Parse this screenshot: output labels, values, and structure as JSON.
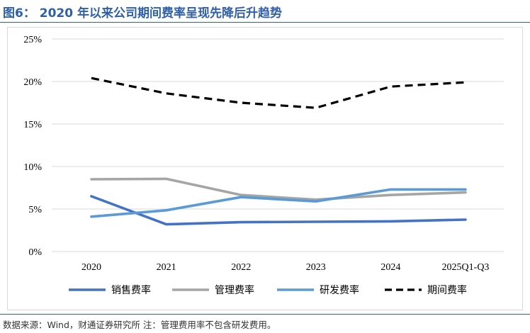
{
  "figure": {
    "title": "图6： 2020 年以来公司期间费率呈现先降后升趋势",
    "source": "数据来源：Wind，财通证券研究所 注：管理费用率不包含研发费用。"
  },
  "colors": {
    "title": "#2e5fa8",
    "grid": "#d9d9d9",
    "axis_text": "#000000"
  },
  "chart_data": {
    "type": "line",
    "x": [
      "2020",
      "2021",
      "2022",
      "2023",
      "2024",
      "2025Q1-Q3"
    ],
    "ylim": [
      0,
      25
    ],
    "y_ticks": [
      0,
      5,
      10,
      15,
      20,
      25
    ],
    "y_tick_labels": [
      "0%",
      "5%",
      "10%",
      "15%",
      "20%",
      "25%"
    ],
    "grid": true,
    "legend": "bottom",
    "series": [
      {
        "name": "销售费率",
        "color": "#4472c4",
        "dashed": false,
        "values": [
          6.5,
          3.2,
          3.45,
          3.5,
          3.55,
          3.75
        ]
      },
      {
        "name": "管理费率",
        "color": "#a5a5a5",
        "dashed": false,
        "values": [
          8.5,
          8.55,
          6.65,
          6.1,
          6.65,
          6.95
        ]
      },
      {
        "name": "研发费率",
        "color": "#5b9bd5",
        "dashed": false,
        "values": [
          4.1,
          4.85,
          6.4,
          5.9,
          7.3,
          7.3
        ]
      },
      {
        "name": "期间费率",
        "color": "#000000",
        "dashed": true,
        "values": [
          20.4,
          18.6,
          17.5,
          16.9,
          19.4,
          19.9
        ]
      }
    ]
  }
}
